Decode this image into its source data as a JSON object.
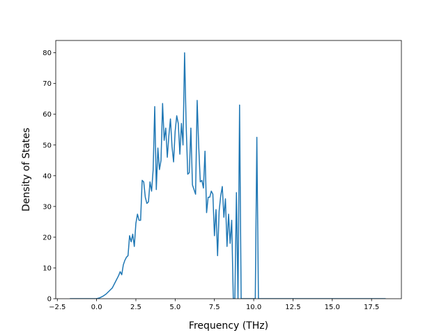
{
  "chart_data": {
    "type": "line",
    "title": "",
    "xlabel": "Frequency (THz)",
    "ylabel": "Density of States",
    "xlim": [
      -2.6,
      19.4
    ],
    "ylim": [
      0,
      84
    ],
    "x_ticks": [
      -2.5,
      0.0,
      2.5,
      5.0,
      7.5,
      10.0,
      12.5,
      15.0,
      17.5
    ],
    "x_tick_labels": [
      "−2.5",
      "0.0",
      "2.5",
      "5.0",
      "7.5",
      "10.0",
      "12.5",
      "15.0",
      "17.5"
    ],
    "y_ticks": [
      0,
      10,
      20,
      30,
      40,
      50,
      60,
      70,
      80
    ],
    "y_tick_labels": [
      "0",
      "10",
      "20",
      "30",
      "40",
      "50",
      "60",
      "70",
      "80"
    ],
    "grid": false,
    "legend": "none",
    "series": [
      {
        "color": "#1f77b4",
        "x": [
          -1.7,
          -0.5,
          0.0,
          0.2,
          0.4,
          0.6,
          0.8,
          1.0,
          1.2,
          1.4,
          1.5,
          1.6,
          1.7,
          1.8,
          1.9,
          2.0,
          2.1,
          2.2,
          2.3,
          2.4,
          2.5,
          2.6,
          2.7,
          2.8,
          2.9,
          3.0,
          3.1,
          3.2,
          3.3,
          3.4,
          3.5,
          3.6,
          3.7,
          3.8,
          3.9,
          4.0,
          4.1,
          4.2,
          4.3,
          4.4,
          4.5,
          4.6,
          4.7,
          4.8,
          4.9,
          5.0,
          5.1,
          5.2,
          5.3,
          5.4,
          5.5,
          5.6,
          5.7,
          5.8,
          5.9,
          6.0,
          6.1,
          6.2,
          6.3,
          6.4,
          6.5,
          6.6,
          6.7,
          6.8,
          6.9,
          7.0,
          7.1,
          7.2,
          7.3,
          7.4,
          7.5,
          7.6,
          7.7,
          7.8,
          7.9,
          8.0,
          8.1,
          8.2,
          8.3,
          8.4,
          8.5,
          8.6,
          8.7,
          8.8,
          8.9,
          9.0,
          9.1,
          9.2,
          9.3,
          9.35,
          9.4,
          9.5,
          10.1,
          10.2,
          10.3,
          18.4
        ],
        "y": [
          0,
          0,
          0,
          0.3,
          0.8,
          1.5,
          2.5,
          3.5,
          5.5,
          7.5,
          8.8,
          7.8,
          11,
          12.5,
          13.5,
          14,
          20.5,
          18.5,
          21,
          17,
          24.5,
          27.5,
          25.5,
          25.5,
          38.5,
          38,
          33,
          31,
          31.5,
          38,
          35,
          42,
          62.5,
          35.5,
          49,
          42,
          45,
          63.5,
          51.5,
          55.5,
          46,
          53,
          58.5,
          49.5,
          44.5,
          54.5,
          59.5,
          57,
          47,
          57,
          50,
          80,
          56.5,
          40.5,
          41,
          55.5,
          37,
          35.5,
          34,
          64.5,
          49.5,
          38,
          38.5,
          36,
          48,
          28,
          33,
          33,
          35,
          34,
          20.5,
          29,
          14,
          28.5,
          33.5,
          36.5,
          26.5,
          32.5,
          17,
          27.5,
          18,
          25.5,
          0,
          0,
          34.5,
          0,
          63,
          0,
          0,
          0,
          0,
          0,
          0,
          52.5,
          0,
          0
        ]
      }
    ]
  }
}
